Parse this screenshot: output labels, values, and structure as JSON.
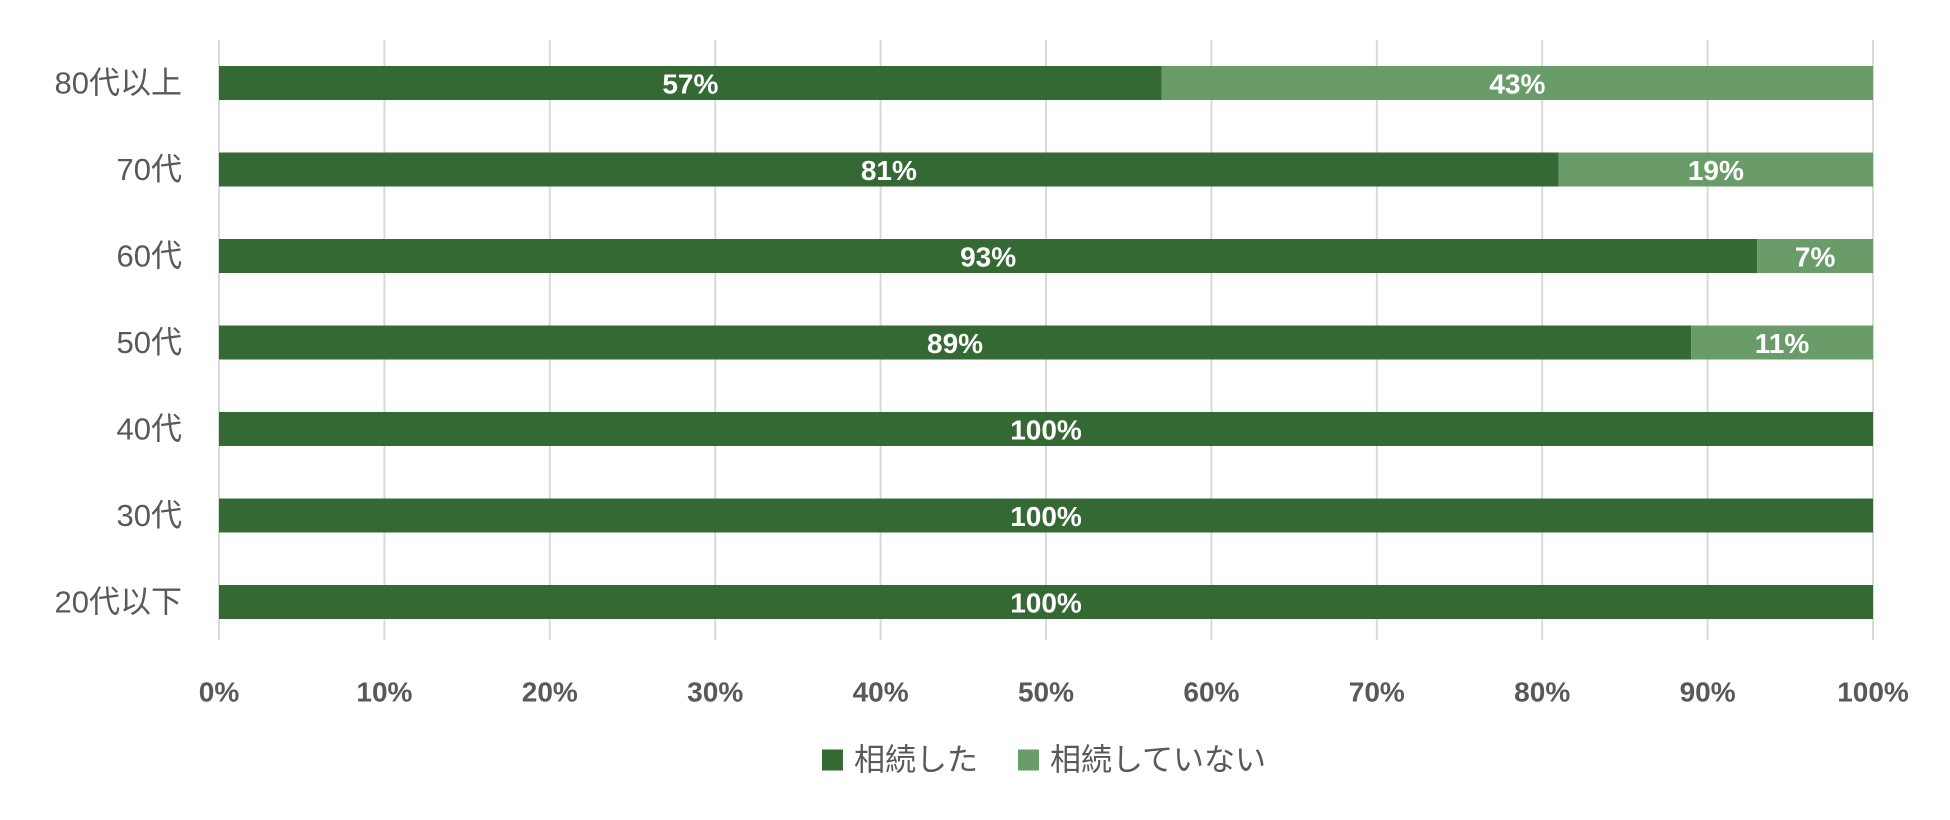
{
  "chart_data": {
    "type": "bar",
    "orientation": "horizontal",
    "stacked": "percent",
    "title": "",
    "xlabel": "",
    "ylabel": "",
    "categories": [
      "80代以上",
      "70代",
      "60代",
      "50代",
      "40代",
      "30代",
      "20代以下"
    ],
    "series": [
      {
        "name": "相続した",
        "color": "#356934",
        "values": [
          57,
          81,
          93,
          89,
          100,
          100,
          100
        ],
        "labels": [
          "57%",
          "81%",
          "93%",
          "89%",
          "100%",
          "100%",
          "100%"
        ]
      },
      {
        "name": "相続していない",
        "color": "#699c69",
        "values": [
          43,
          19,
          7,
          11,
          0,
          0,
          0
        ],
        "labels": [
          "43%",
          "19%",
          "7%",
          "11%",
          "",
          "",
          ""
        ]
      }
    ],
    "xlim": [
      0,
      100
    ],
    "xticks": [
      "0%",
      "10%",
      "20%",
      "30%",
      "40%",
      "50%",
      "60%",
      "70%",
      "80%",
      "90%",
      "100%"
    ],
    "grid": true,
    "legend_position": "bottom"
  }
}
